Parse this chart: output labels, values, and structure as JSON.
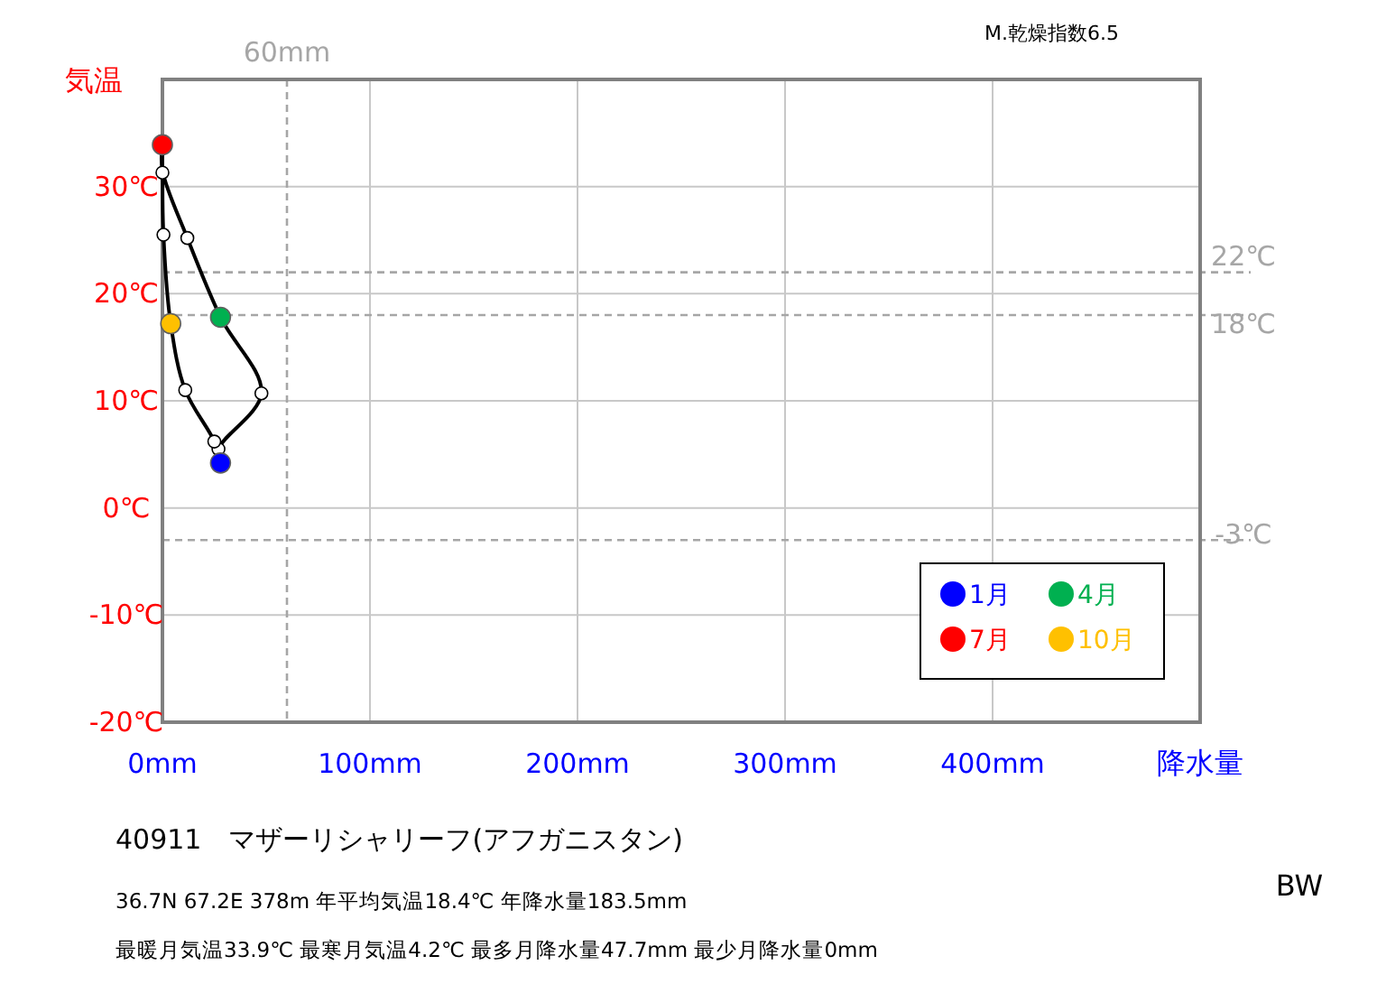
{
  "chart_data": {
    "type": "line",
    "title": "40911　マザーリシャリーフ(アフガニスタン)",
    "ylabel": "気温",
    "xlabel": "降水量",
    "xlim": [
      0,
      500
    ],
    "ylim": [
      -20,
      40
    ],
    "xticks": [
      {
        "value": 0,
        "label": "0mm"
      },
      {
        "value": 100,
        "label": "100mm"
      },
      {
        "value": 200,
        "label": "200mm"
      },
      {
        "value": 300,
        "label": "300mm"
      },
      {
        "value": 400,
        "label": "400mm"
      }
    ],
    "yticks": [
      {
        "value": -20,
        "label": "-20℃"
      },
      {
        "value": -10,
        "label": "-10℃"
      },
      {
        "value": 0,
        "label": "0℃"
      },
      {
        "value": 10,
        "label": "10℃"
      },
      {
        "value": 20,
        "label": "20℃"
      },
      {
        "value": 30,
        "label": "30℃"
      }
    ],
    "grid": true,
    "legend": "bottom right",
    "marker": "circle",
    "series": [
      {
        "color": "#000000",
        "marker": "none",
        "x": [
          28,
          27,
          47.7,
          28,
          12,
          0,
          0,
          0,
          0.5,
          4,
          11,
          25
        ],
        "values": [
          4.2,
          5.5,
          10.7,
          17.8,
          25.2,
          31.5,
          33.9,
          31.3,
          25.5,
          17.2,
          11.0,
          6.2
        ]
      },
      {
        "type": "scatter",
        "color": "#ffffff",
        "x": [
          27,
          47.7,
          12,
          0,
          0.5,
          11,
          25
        ],
        "values": [
          5.5,
          10.7,
          25.2,
          31.3,
          25.5,
          11.0,
          6.2
        ]
      },
      {
        "type": "scatter",
        "name": "1月",
        "color": "#0000ff",
        "x": [
          28
        ],
        "values": [
          4.2
        ]
      },
      {
        "type": "scatter",
        "name": "4月",
        "color": "#00b050",
        "x": [
          28
        ],
        "values": [
          17.8
        ]
      },
      {
        "type": "scatter",
        "name": "7月",
        "color": "#ff0000",
        "x": [
          0
        ],
        "values": [
          33.9
        ]
      },
      {
        "type": "scatter",
        "name": "10月",
        "color": "#ffc000",
        "x": [
          4
        ],
        "values": [
          17.2
        ]
      }
    ],
    "ref_lines": [
      {
        "axis": "x",
        "value": 60,
        "label": "60mm",
        "color": "#a6a6a6",
        "line_style": "dashed"
      },
      {
        "axis": "y",
        "value": 22,
        "label": "22℃",
        "color": "#a6a6a6",
        "line_style": "dashed"
      },
      {
        "axis": "y",
        "value": 18,
        "label": "18℃",
        "color": "#a6a6a6",
        "line_style": "dashed"
      },
      {
        "axis": "y",
        "value": -3,
        "label": "-3℃",
        "color": "#a6a6a6",
        "line_style": "dashed"
      }
    ],
    "annotations": [
      "M.乾燥指数6.5",
      "36.7N  67.2E 378m  年平均気温18.4℃ 年降水量183.5mm",
      "最暖月気温33.9℃ 最寒月気温4.2℃ 最多月降水量47.7mm 最少月降水量0mm",
      "BW"
    ]
  }
}
